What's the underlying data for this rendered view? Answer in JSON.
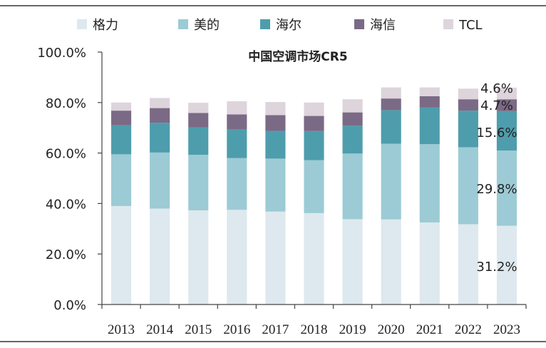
{
  "chart_data": {
    "type": "bar",
    "stacked": true,
    "title": "中国空调市场CR5",
    "categories": [
      "2013",
      "2014",
      "2015",
      "2016",
      "2017",
      "2018",
      "2019",
      "2020",
      "2021",
      "2022",
      "2023"
    ],
    "series": [
      {
        "name": "格力",
        "color": "#dde9ee",
        "values": [
          39.0,
          38.0,
          37.3,
          37.5,
          36.8,
          36.2,
          33.8,
          33.7,
          32.5,
          31.8,
          31.2
        ]
      },
      {
        "name": "美的",
        "color": "#9ccbd5",
        "values": [
          20.5,
          22.2,
          22.0,
          20.5,
          21.0,
          21.0,
          26.0,
          30.0,
          31.0,
          30.5,
          29.8
        ]
      },
      {
        "name": "海尔",
        "color": "#4e9dac",
        "values": [
          11.5,
          11.8,
          10.8,
          11.3,
          11.0,
          11.5,
          11.0,
          13.3,
          14.5,
          14.5,
          15.6
        ]
      },
      {
        "name": "海信",
        "color": "#7b6a85",
        "values": [
          5.8,
          5.8,
          5.8,
          6.0,
          6.2,
          6.0,
          5.3,
          4.6,
          4.5,
          4.5,
          4.7
        ]
      },
      {
        "name": "TCL",
        "color": "#ddd4dc",
        "values": [
          3.2,
          4.0,
          4.0,
          5.2,
          5.2,
          5.3,
          5.2,
          4.4,
          3.5,
          4.2,
          4.6
        ]
      }
    ],
    "ylim": [
      0,
      100
    ],
    "ytick_labels": [
      "0.0%",
      "20.0%",
      "40.0%",
      "60.0%",
      "80.0%",
      "100.0%"
    ],
    "legend_position": "top",
    "data_labels": [
      {
        "series": "格力",
        "category": "2023",
        "text": "31.2%"
      },
      {
        "series": "美的",
        "category": "2023",
        "text": "29.8%"
      },
      {
        "series": "海尔",
        "category": "2023",
        "text": "15.6%"
      },
      {
        "series": "海信",
        "category": "2023",
        "text": "4.7%"
      },
      {
        "series": "TCL",
        "category": "2023",
        "text": "4.6%"
      }
    ]
  }
}
